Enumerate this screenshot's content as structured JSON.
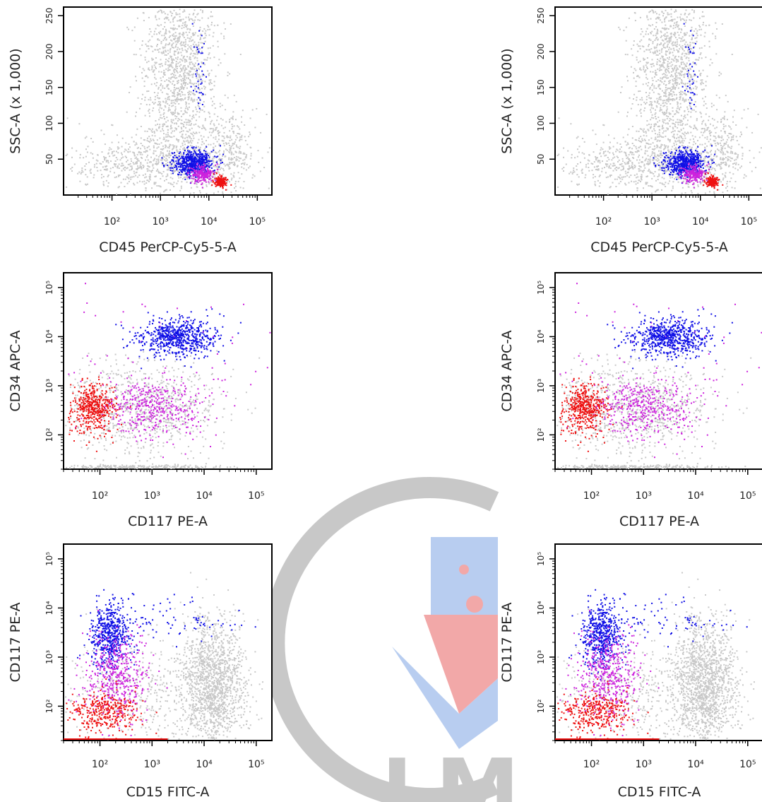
{
  "colors": {
    "background": "#c8c8c8",
    "blue": "#1010e6",
    "magenta": "#cc22dd",
    "red": "#ee1111",
    "watermark_grey": "#c8c8c8",
    "watermark_blue": "#b8cdf0",
    "watermark_red": "#f2a8a8"
  },
  "watermark": {
    "text": "LM"
  },
  "chart_data": [
    {
      "type": "scatter",
      "id": "ssc_vs_cd45",
      "xlabel": "CD45 PerCP-Cy5-5-A",
      "ylabel": "SSC-A (x 1,000)",
      "x_scale": "log",
      "x_ticks": [
        {
          "value": 100,
          "label": "10²"
        },
        {
          "value": 1000,
          "label": "10³"
        },
        {
          "value": 10000,
          "label": "10⁴"
        },
        {
          "value": 100000,
          "label": "10⁵"
        }
      ],
      "xlim": [
        10,
        200000
      ],
      "y_scale": "linear",
      "y_ticks": [
        {
          "value": 50,
          "label": "50"
        },
        {
          "value": 100,
          "label": "100"
        },
        {
          "value": 150,
          "label": "150"
        },
        {
          "value": 200,
          "label": "200"
        },
        {
          "value": 250,
          "label": "250"
        }
      ],
      "ylim": [
        0,
        262
      ],
      "populations": [
        {
          "color": "blue",
          "x_center": 4500,
          "y_center": 45,
          "spread": "dense cluster, sparse tail up to y 240"
        },
        {
          "color": "magenta",
          "x_center": 7000,
          "y_center": 30
        },
        {
          "color": "red",
          "x_center": 17000,
          "y_center": 20
        },
        {
          "color": "background",
          "x_range": [
            100,
            60000
          ],
          "y_range": [
            10,
            262
          ],
          "note": "grey background events"
        }
      ]
    },
    {
      "type": "scatter",
      "id": "cd34_vs_cd117",
      "xlabel": "CD117 PE-A",
      "ylabel": "CD34 APC-A",
      "x_scale": "log",
      "x_ticks": [
        {
          "value": 100,
          "label": "10²"
        },
        {
          "value": 1000,
          "label": "10³"
        },
        {
          "value": 10000,
          "label": "10⁴"
        },
        {
          "value": 100000,
          "label": "10⁵"
        }
      ],
      "xlim": [
        20,
        200000
      ],
      "y_scale": "log",
      "y_ticks": [
        {
          "value": 100,
          "label": "10²"
        },
        {
          "value": 1000,
          "label": "10³"
        },
        {
          "value": 10000,
          "label": "10⁴"
        },
        {
          "value": 100000,
          "label": "10⁵"
        }
      ],
      "ylim": [
        20,
        200000
      ],
      "populations": [
        {
          "color": "blue",
          "x_center": 3000,
          "y_center": 10000
        },
        {
          "color": "magenta",
          "x_center": 1000,
          "y_center": 350
        },
        {
          "color": "red",
          "x_center": 70,
          "y_center": 350
        },
        {
          "color": "background",
          "note": "grey events along bottom and middle"
        }
      ]
    },
    {
      "type": "scatter",
      "id": "cd117_vs_cd15",
      "xlabel": "CD15 FITC-A",
      "ylabel": "CD117 PE-A",
      "x_scale": "log",
      "x_ticks": [
        {
          "value": 100,
          "label": "10²"
        },
        {
          "value": 1000,
          "label": "10³"
        },
        {
          "value": 10000,
          "label": "10⁴"
        },
        {
          "value": 100000,
          "label": "10⁵"
        }
      ],
      "xlim": [
        20,
        200000
      ],
      "y_scale": "log",
      "y_ticks": [
        {
          "value": 100,
          "label": "10²"
        },
        {
          "value": 1000,
          "label": "10³"
        },
        {
          "value": 10000,
          "label": "10⁴"
        },
        {
          "value": 100000,
          "label": "10⁵"
        }
      ],
      "ylim": [
        20,
        200000
      ],
      "populations": [
        {
          "color": "blue",
          "x_center": 150,
          "y_center": 3000
        },
        {
          "color": "magenta",
          "x_center": 200,
          "y_center": 400
        },
        {
          "color": "red",
          "x_center": 120,
          "y_center": 80
        },
        {
          "color": "background",
          "x_center": 15000,
          "y_center": 300,
          "note": "dense grey cluster on the right"
        }
      ]
    }
  ]
}
